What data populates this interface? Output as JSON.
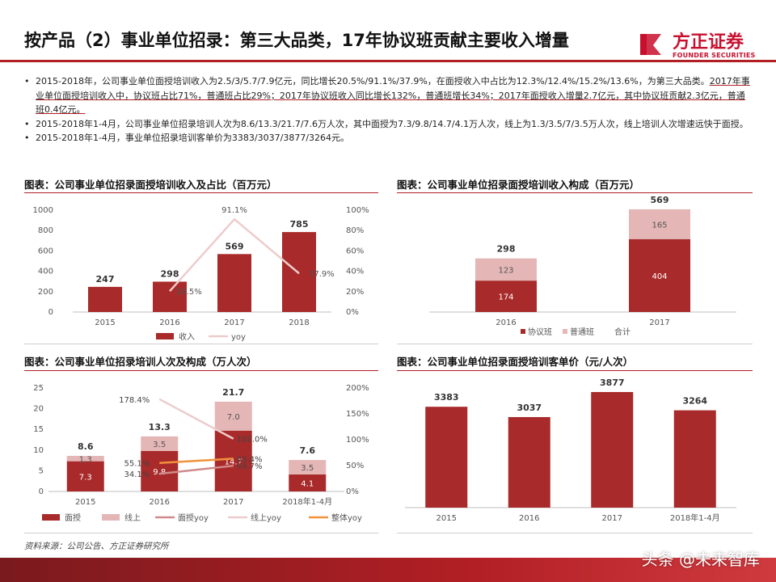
{
  "colors": {
    "dark_red": "#a82a2a",
    "light_pink": "#e4b6b6",
    "mid_pink": "#d08a8a",
    "line_pink": "#edcccc",
    "orange": "#f0923c",
    "brand": "#c8102e"
  },
  "header": {
    "title": "按产品（2）事业单位招录：第三大品类，17年协议班贡献主要收入增量",
    "logo_cn": "方正证券",
    "logo_en": "FOUNDER SECURITIES"
  },
  "bullets": [
    {
      "parts": [
        {
          "text": "2015-2018年，公司事业单位面授培训收入为2.5/3/5.7/7.9亿元，同比增长20.5%/91.1%/37.9%，在面授收入中占比为12.3%/12.4%/15.2%/13.6%，为第三大品类。",
          "u": false
        },
        {
          "text": "2017年事业单位面授培训收入中，协议班占比71%，普通班占比29%；2017年协议班收入同比增长132%，普通班增长34%；2017年面授收入增量2.7亿元，其中协议班贡献2.3亿元，普通班0.4亿元。",
          "u": true
        }
      ]
    },
    {
      "parts": [
        {
          "text": "2015-2018年1-4月，公司事业单位招录培训人次为8.6/13.3/21.7/7.6万人次，其中面授为7.3/9.8/14.7/4.1万人次，线上为1.3/3.5/7/3.5万人次，线上培训人次增速远快于面授。",
          "u": false
        }
      ]
    },
    {
      "parts": [
        {
          "text": "2015-2018年1-4月，事业单位招录培训客单价为3383/3037/3877/3264元。",
          "u": false
        }
      ]
    }
  ],
  "charts_meta": [
    {
      "title": "图表：公司事业单位招录面授培训收入及占比（百万元）"
    },
    {
      "title": "图表：公司事业单位招录面授培训收入构成（百万元）"
    },
    {
      "title": "图表：公司事业单位招录培训人次及构成（万人次）"
    },
    {
      "title": "图表：公司事业单位招录面授培训客单价（元/人次）"
    }
  ],
  "chart_data": [
    {
      "type": "bar",
      "categories": [
        "2015",
        "2016",
        "2017",
        "2018"
      ],
      "series": [
        {
          "name": "收入",
          "kind": "bar",
          "axis": "left",
          "values": [
            247,
            298,
            569,
            785
          ],
          "labels": [
            "247",
            "298",
            "569",
            "785"
          ]
        },
        {
          "name": "yoy",
          "kind": "line",
          "axis": "right",
          "values": [
            null,
            20.5,
            91.1,
            37.9
          ],
          "labels": [
            null,
            "20.5%",
            "91.1%",
            "37.9%"
          ]
        }
      ],
      "ylim": [
        0,
        1000
      ],
      "yticks": [
        "0",
        "200",
        "400",
        "600",
        "800",
        "1000"
      ],
      "y2lim": [
        0,
        100
      ],
      "y2ticks": [
        "0%",
        "20%",
        "40%",
        "60%",
        "80%",
        "100%"
      ],
      "legend": "bottom"
    },
    {
      "type": "bar",
      "stacked": true,
      "categories": [
        "2016",
        "2017"
      ],
      "series": [
        {
          "name": "协议班",
          "values": [
            174,
            404
          ],
          "labels": [
            "174",
            "404"
          ]
        },
        {
          "name": "普通班",
          "values": [
            123,
            165
          ],
          "labels": [
            "123",
            "165"
          ]
        }
      ],
      "totals": {
        "name": "合计",
        "labels": [
          "298",
          "569"
        ]
      },
      "ylim": [
        0,
        600
      ],
      "legend": "bottom"
    },
    {
      "type": "bar",
      "stacked": true,
      "categories": [
        "2015",
        "2016",
        "2017",
        "2018年1-4月"
      ],
      "series": [
        {
          "name": "面授",
          "kind": "bar",
          "values": [
            7.3,
            9.8,
            14.7,
            4.1
          ],
          "labels": [
            "7.3",
            "9.8",
            "14.7",
            "4.1"
          ]
        },
        {
          "name": "线上",
          "kind": "bar",
          "values": [
            1.3,
            3.5,
            7.0,
            3.5
          ],
          "labels": [
            "1.3",
            "3.5",
            "7.0",
            "3.5"
          ]
        },
        {
          "name": "面授yoy",
          "kind": "line",
          "axis": "right",
          "values": [
            null,
            34.1,
            49.7,
            null
          ],
          "labels": [
            null,
            "34.1%",
            "49.7%",
            null
          ]
        },
        {
          "name": "线上yoy",
          "kind": "line",
          "axis": "right",
          "values": [
            null,
            178.4,
            102.0,
            null
          ],
          "labels": [
            null,
            "178.4%",
            "102.0%",
            null
          ]
        },
        {
          "name": "整体yoy",
          "kind": "line",
          "axis": "right",
          "values": [
            null,
            55.1,
            63.4,
            null
          ],
          "labels": [
            null,
            "55.1%",
            "63.4%",
            null
          ]
        }
      ],
      "totals": {
        "labels": [
          "8.6",
          "13.3",
          "21.7",
          "7.6"
        ]
      },
      "ylim": [
        0,
        25
      ],
      "yticks": [
        "0",
        "5",
        "10",
        "15",
        "20",
        "25"
      ],
      "y2lim": [
        0,
        200
      ],
      "y2ticks": [
        "0%",
        "50%",
        "100%",
        "150%",
        "200%"
      ],
      "legend": "bottom"
    },
    {
      "type": "bar",
      "categories": [
        "2015",
        "2016",
        "2017",
        "2018年1-4月"
      ],
      "series": [
        {
          "name": "客单价",
          "values": [
            3383,
            3037,
            3877,
            3264
          ],
          "labels": [
            "3383",
            "3037",
            "3877",
            "3264"
          ]
        }
      ],
      "ylim": [
        0,
        4500
      ]
    }
  ],
  "footer": {
    "source": "资料来源：公司公告、方正证券研究所",
    "watermark": "头条 @未来智库"
  }
}
